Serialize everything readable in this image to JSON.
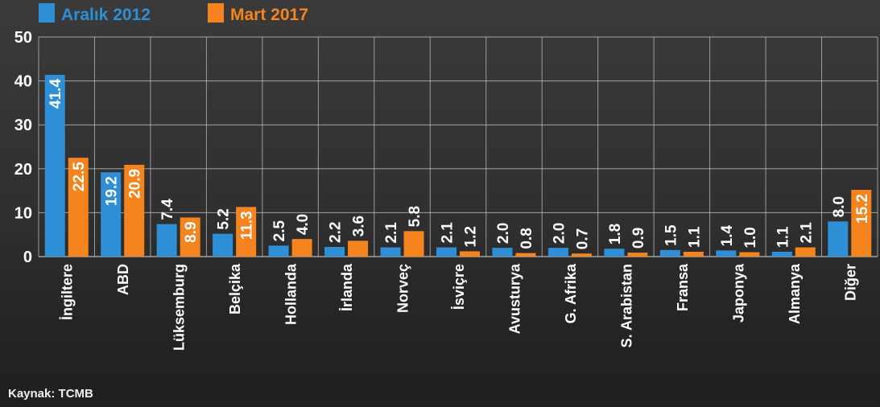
{
  "chart_data": {
    "type": "bar",
    "categories": [
      "İngiltere",
      "ABD",
      "Lüksemburg",
      "Belçika",
      "Hollanda",
      "İrlanda",
      "Norveç",
      "İsviçre",
      "Avusturya",
      "G. Afrika",
      "S. Arabistan",
      "Fransa",
      "Japonya",
      "Almanya",
      "Diğer"
    ],
    "series": [
      {
        "name": "Aralık 2012",
        "color": "#2e8fd6",
        "values": [
          41.4,
          19.2,
          7.4,
          5.2,
          2.5,
          2.2,
          2.1,
          2.1,
          2.0,
          2.0,
          1.8,
          1.5,
          1.4,
          1.1,
          8.0
        ]
      },
      {
        "name": "Mart 2017",
        "color": "#f5841f",
        "values": [
          22.5,
          20.9,
          8.9,
          11.3,
          4.0,
          3.6,
          5.8,
          1.2,
          0.8,
          0.7,
          0.9,
          1.1,
          1.0,
          2.1,
          15.2
        ]
      }
    ],
    "value_labels": {
      "Aralık 2012": [
        "41.4",
        "19.2",
        "7.4",
        "5.2",
        "2.5",
        "2.2",
        "2.1",
        "2.1",
        "2.0",
        "2.0",
        "1.8",
        "1.5",
        "1.4",
        "1.1",
        "8.0"
      ],
      "Mart 2017": [
        "22.5",
        "20.9",
        "8.9",
        "11.3",
        "4.0",
        "3.6",
        "5.8",
        "1.2",
        "0.8",
        "0.7",
        "0.9",
        "1.1",
        "1.0",
        "2.1",
        "15.2"
      ]
    },
    "ylim": [
      0,
      50
    ],
    "yticks": [
      "0",
      "10",
      "20",
      "30",
      "40",
      "50"
    ],
    "grid": true,
    "legend": "top-left"
  },
  "source": "Kaynak: TCMB"
}
